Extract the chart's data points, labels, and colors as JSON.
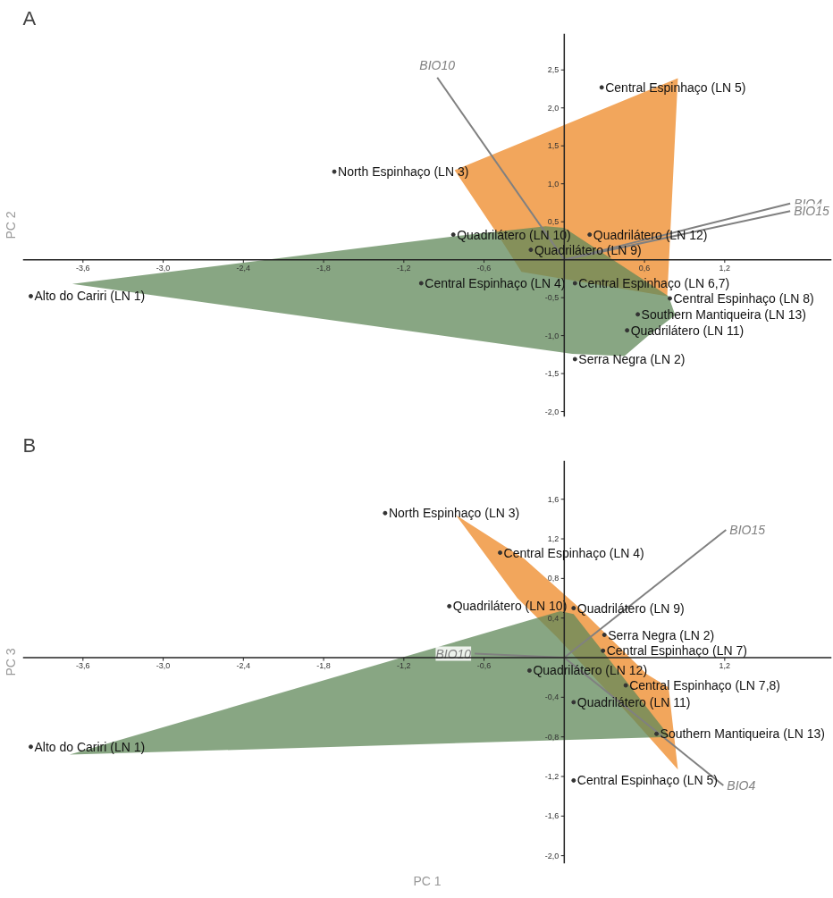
{
  "chart_data": [
    {
      "type": "scatter",
      "title": "A",
      "ylabel": "PC 2",
      "xlim": [
        -4.05,
        2.0
      ],
      "ylim": [
        -2.07,
        2.98
      ],
      "grid": false,
      "marker": "circle",
      "xticks": [
        {
          "value": -3.6,
          "label": "-3,6"
        },
        {
          "value": -3.0,
          "label": "-3,0"
        },
        {
          "value": -2.4,
          "label": "-2,4"
        },
        {
          "value": -1.8,
          "label": "-1,8"
        },
        {
          "value": -1.2,
          "label": "-1,2"
        },
        {
          "value": -0.6,
          "label": "-0,6"
        },
        {
          "value": 0.6,
          "label": "0,6"
        },
        {
          "value": 1.2,
          "label": "1,2"
        }
      ],
      "yticks": [
        {
          "value": -2.0,
          "label": "-2,0"
        },
        {
          "value": -1.5,
          "label": "-1,5"
        },
        {
          "value": -1.0,
          "label": "-1,0"
        },
        {
          "value": -0.5,
          "label": "-0,5"
        },
        {
          "value": 0.5,
          "label": "0,5"
        },
        {
          "value": 1.0,
          "label": "1,0"
        },
        {
          "value": 1.5,
          "label": "1,5"
        },
        {
          "value": 2.0,
          "label": "2,0"
        },
        {
          "value": 2.5,
          "label": "2,5"
        }
      ],
      "x": [
        0.28,
        -1.72,
        -0.83,
        0.19,
        -0.25,
        -1.07,
        0.08,
        0.79,
        0.55,
        0.47,
        0.08,
        -3.99
      ],
      "values": [
        2.27,
        1.16,
        0.33,
        0.33,
        0.13,
        -0.31,
        -0.31,
        -0.51,
        -0.72,
        -0.93,
        -1.31,
        -0.48
      ],
      "value_labels": [
        "Central Espinhaço (LN 5)",
        "North Espinhaço (LN 3)",
        "Quadrilátero (LN 10)",
        "Quadrilátero (LN 12)",
        "Quadrilátero (LN 9)",
        "Central Espinhaço (LN 4)",
        "Central Espinhaço (LN 6,7)",
        "Central Espinhaço (LN 8)",
        "Southern Mantiqueira (LN 13)",
        "Quadrilátero (LN 11)",
        "Serra Negra (LN 2)",
        "Alto do Cariri (LN 1)"
      ],
      "series": [
        {
          "type": "area",
          "marker": "none",
          "color": "#f2a65c",
          "x": [
            -0.82,
            0.85,
            0.77,
            -0.32,
            -0.49
          ],
          "values": [
            1.18,
            2.39,
            -0.48,
            -0.16,
            0.31
          ]
        },
        {
          "type": "area",
          "marker": "none",
          "color": "#608859",
          "x": [
            -3.68,
            -0.81,
            -0.14,
            0.0,
            0.78,
            0.83,
            0.63,
            0.45,
            0.06
          ],
          "values": [
            -0.32,
            0.31,
            0.44,
            0.42,
            -0.48,
            -0.73,
            -1.0,
            -1.27,
            -1.24
          ]
        },
        {
          "type": "line",
          "marker": "none",
          "name": "BIO10",
          "color": "#808080",
          "x": [
            0,
            -0.95
          ],
          "values": [
            0,
            2.4
          ]
        },
        {
          "type": "line",
          "marker": "none",
          "name": "BIO4",
          "color": "#808080",
          "x": [
            0,
            1.69
          ],
          "values": [
            0,
            0.74
          ]
        },
        {
          "type": "line",
          "marker": "none",
          "name": "BIO15",
          "color": "#808080",
          "x": [
            0,
            1.69
          ],
          "values": [
            0,
            0.64
          ]
        }
      ]
    },
    {
      "type": "scatter",
      "title": "B",
      "ylabel": "PC 3",
      "xlabel": "PC 1",
      "xlim": [
        -4.05,
        2.0
      ],
      "ylim": [
        -2.08,
        1.99
      ],
      "grid": false,
      "marker": "circle",
      "xticks": [
        {
          "value": -3.6,
          "label": "-3,6"
        },
        {
          "value": -3.0,
          "label": "-3,0"
        },
        {
          "value": -2.4,
          "label": "-2,4"
        },
        {
          "value": -1.8,
          "label": "-1,8"
        },
        {
          "value": -1.2,
          "label": "-1,2"
        },
        {
          "value": -0.6,
          "label": "-0,6"
        },
        {
          "value": 1.2,
          "label": "1,2"
        }
      ],
      "yticks": [
        {
          "value": -2.0,
          "label": "-2,0"
        },
        {
          "value": -1.6,
          "label": "-1,6"
        },
        {
          "value": -1.2,
          "label": "-1,2"
        },
        {
          "value": -0.8,
          "label": "-0,8"
        },
        {
          "value": -0.4,
          "label": "-0,4"
        },
        {
          "value": 0.4,
          "label": "0,4"
        },
        {
          "value": 0.8,
          "label": "0,8"
        },
        {
          "value": 1.2,
          "label": "1,2"
        },
        {
          "value": 1.6,
          "label": "1,6"
        }
      ],
      "x": [
        -1.34,
        -0.48,
        -0.86,
        0.07,
        0.3,
        0.29,
        -0.26,
        0.46,
        0.07,
        0.69,
        0.07,
        -3.99
      ],
      "values": [
        1.46,
        1.06,
        0.52,
        0.5,
        0.23,
        0.07,
        -0.13,
        -0.28,
        -0.45,
        -0.77,
        -1.24,
        -0.9
      ],
      "value_labels": [
        "North Espinhaço (LN 3)",
        "Central Espinhaço (LN 4)",
        "Quadrilátero (LN 10)",
        "Quadrilátero (LN 9)",
        "Serra Negra (LN 2)",
        "Central Espinhaço (LN 7)",
        "Quadrilátero (LN 12)",
        "Central Espinhaço (LN 7,8)",
        "Quadrilátero (LN 11)",
        "Southern Mantiqueira (LN 13)",
        "Central Espinhaço (LN 5)",
        "Alto do Cariri (LN 1)"
      ],
      "series": [
        {
          "type": "area",
          "marker": "none",
          "color": "#f2a65c",
          "x": [
            -0.81,
            -0.3,
            0.1,
            0.62,
            0.78,
            0.85,
            0.5,
            -0.05,
            -0.35
          ],
          "values": [
            1.44,
            1.0,
            0.52,
            -0.17,
            -0.3,
            -1.13,
            -0.6,
            0.2,
            0.6
          ]
        },
        {
          "type": "area",
          "marker": "none",
          "color": "#608859",
          "x": [
            -3.7,
            -0.03,
            0.07,
            0.79
          ],
          "values": [
            -0.98,
            0.47,
            0.44,
            -0.8
          ]
        },
        {
          "type": "line",
          "marker": "none",
          "name": "BIO15",
          "color": "#808080",
          "x": [
            0,
            1.21
          ],
          "values": [
            0,
            1.29
          ]
        },
        {
          "type": "line",
          "marker": "none",
          "name": "BIO10",
          "color": "#808080",
          "x": [
            0,
            -0.67
          ],
          "values": [
            0,
            0.04
          ]
        },
        {
          "type": "line",
          "marker": "none",
          "name": "BIO4",
          "color": "#808080",
          "x": [
            0,
            1.19
          ],
          "values": [
            0,
            -1.29
          ]
        }
      ]
    }
  ]
}
